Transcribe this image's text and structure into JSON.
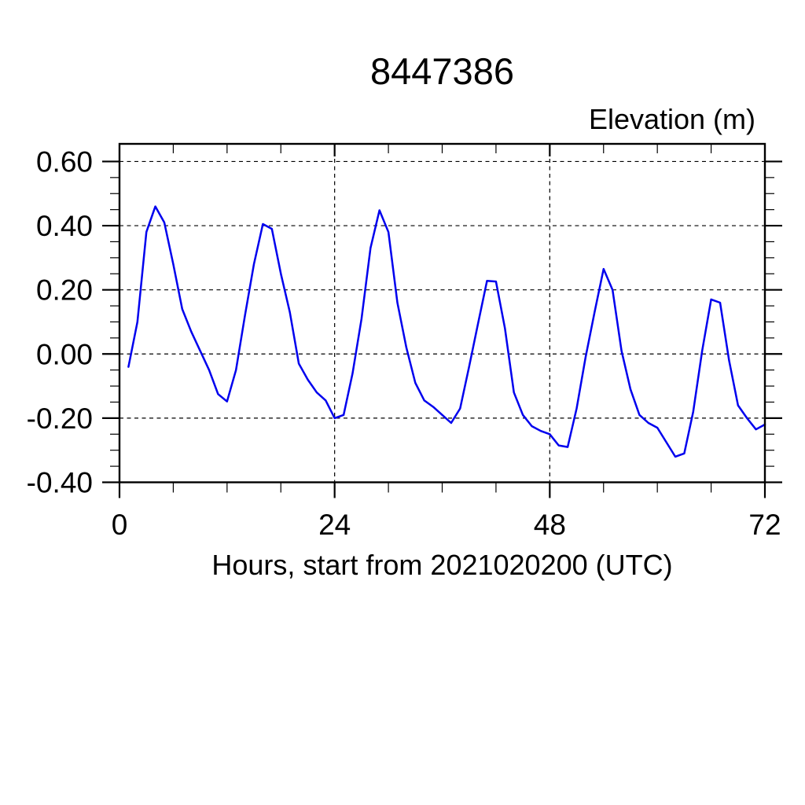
{
  "colors": {
    "background": "#ffffff",
    "line": "#0000ee",
    "frame": "#000000",
    "grid": "#000000",
    "text": "#000000"
  },
  "chart_data": {
    "type": "line",
    "title": "8447386",
    "xlabel": "Hours, start from 2021020200 (UTC)",
    "ylabel": "Elevation (m)",
    "xlim": [
      0,
      72
    ],
    "ylim": [
      -0.4,
      0.655
    ],
    "grid": "dashed at major ticks",
    "legend_position": "none",
    "x_axis": {
      "tick_labels": [
        "0",
        "24",
        "48",
        "72"
      ],
      "tick_values": [
        0,
        24,
        48,
        72
      ],
      "minor_step": 6
    },
    "y_axis": {
      "tick_labels": [
        "0.60",
        "0.40",
        "0.20",
        "0.00",
        "-0.20",
        "-0.40"
      ],
      "tick_values": [
        0.6,
        0.4,
        0.2,
        0,
        -0.2,
        -0.4
      ],
      "minor_step": 0.05
    },
    "series": [
      {
        "name": "elevation",
        "x": [
          1,
          2,
          3,
          4,
          5,
          6,
          7,
          8,
          9,
          10,
          11,
          12,
          13,
          14,
          15,
          16,
          17,
          18,
          19,
          20,
          21,
          22,
          23,
          24,
          25,
          26,
          27,
          28,
          29,
          30,
          31,
          32,
          33,
          34,
          35,
          36,
          37,
          38,
          39,
          40,
          41,
          42,
          43,
          44,
          45,
          46,
          47,
          48,
          49,
          50,
          51,
          52,
          53,
          54,
          55,
          56,
          57,
          58,
          59,
          60,
          61,
          62,
          63,
          64,
          65,
          66,
          67,
          68,
          69,
          70,
          71,
          72
        ],
        "y": [
          -0.04,
          0.1,
          0.38,
          0.46,
          0.41,
          0.28,
          0.14,
          0.07,
          0.01,
          -0.05,
          -0.125,
          -0.148,
          -0.05,
          0.12,
          0.28,
          0.405,
          0.39,
          0.25,
          0.13,
          -0.03,
          -0.08,
          -0.12,
          -0.145,
          -0.2,
          -0.19,
          -0.06,
          0.11,
          0.33,
          0.448,
          0.38,
          0.16,
          0.02,
          -0.09,
          -0.145,
          -0.165,
          -0.19,
          -0.215,
          -0.17,
          -0.04,
          0.095,
          0.228,
          0.226,
          0.08,
          -0.12,
          -0.19,
          -0.225,
          -0.24,
          -0.25,
          -0.285,
          -0.29,
          -0.17,
          -0.01,
          0.13,
          0.265,
          0.2,
          0.01,
          -0.11,
          -0.19,
          -0.215,
          -0.23,
          -0.275,
          -0.32,
          -0.31,
          -0.18,
          0.01,
          0.17,
          0.16,
          -0.02,
          -0.16,
          -0.2,
          -0.235,
          -0.22
        ]
      }
    ]
  }
}
